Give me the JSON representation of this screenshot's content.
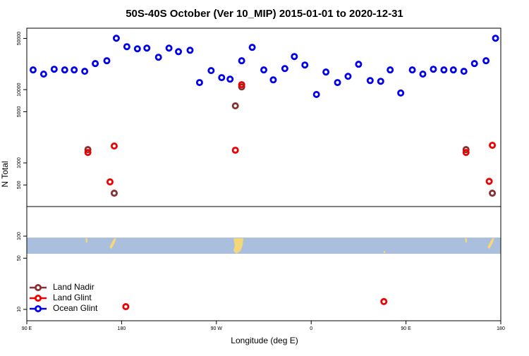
{
  "chart_data": {
    "type": "scatter",
    "title": "50S-40S October (Ver 10_MIP)   2015-01-01 to 2020-12-31",
    "x_label": "Longitude (deg E)",
    "y_label": "N Total",
    "log_y": true,
    "legend": "lower left",
    "xlim": [
      90,
      540
    ],
    "xticks": [
      {
        "value": 90,
        "label": "90 E"
      },
      {
        "value": 180,
        "label": "180"
      },
      {
        "value": 270,
        "label": "90 W"
      },
      {
        "value": 360,
        "label": "0"
      },
      {
        "value": 450,
        "label": "90 E"
      },
      {
        "value": 540,
        "label": "180"
      }
    ],
    "ylim": [
      7,
      69000
    ],
    "yticks": [
      10,
      50,
      100,
      500,
      1000,
      5000,
      10000,
      50000
    ],
    "series": [
      {
        "name": "Land Nadir",
        "color": "#8b2e2e",
        "x": [
          148,
          173,
          288,
          294,
          507,
          532
        ],
        "values": [
          1520,
          386,
          6010,
          10900,
          1520,
          386
        ]
      },
      {
        "name": "Land Glint",
        "color": "#ee0000",
        "x": [
          148,
          173,
          169,
          288,
          294,
          184,
          429,
          507,
          532,
          529
        ],
        "values": [
          1390,
          1700,
          550,
          1490,
          11700,
          10.9,
          12.8,
          1390,
          1740,
          560
        ]
      },
      {
        "name": "Ocean Glint",
        "color": "#0000ee",
        "x": [
          96,
          106,
          116,
          126,
          135,
          145,
          155,
          166,
          175,
          185,
          195,
          204,
          215,
          225,
          234,
          245,
          254,
          265,
          275,
          283,
          294,
          304,
          315,
          324,
          335,
          344,
          354,
          365,
          374,
          385,
          395,
          405,
          416,
          426,
          435,
          445,
          456,
          466,
          476,
          486,
          495,
          505,
          515,
          526,
          535
        ],
        "values": [
          18600,
          16300,
          19000,
          18600,
          18600,
          17800,
          22700,
          24800,
          50300,
          38600,
          36100,
          36900,
          27700,
          36900,
          33000,
          34500,
          12500,
          18200,
          14600,
          13900,
          24800,
          37800,
          18600,
          13600,
          19400,
          28300,
          21700,
          8600,
          17400,
          12500,
          15200,
          22200,
          13300,
          13000,
          18600,
          9000,
          18600,
          16300,
          19000,
          18600,
          18600,
          17800,
          22700,
          24800,
          50300
        ]
      }
    ]
  }
}
